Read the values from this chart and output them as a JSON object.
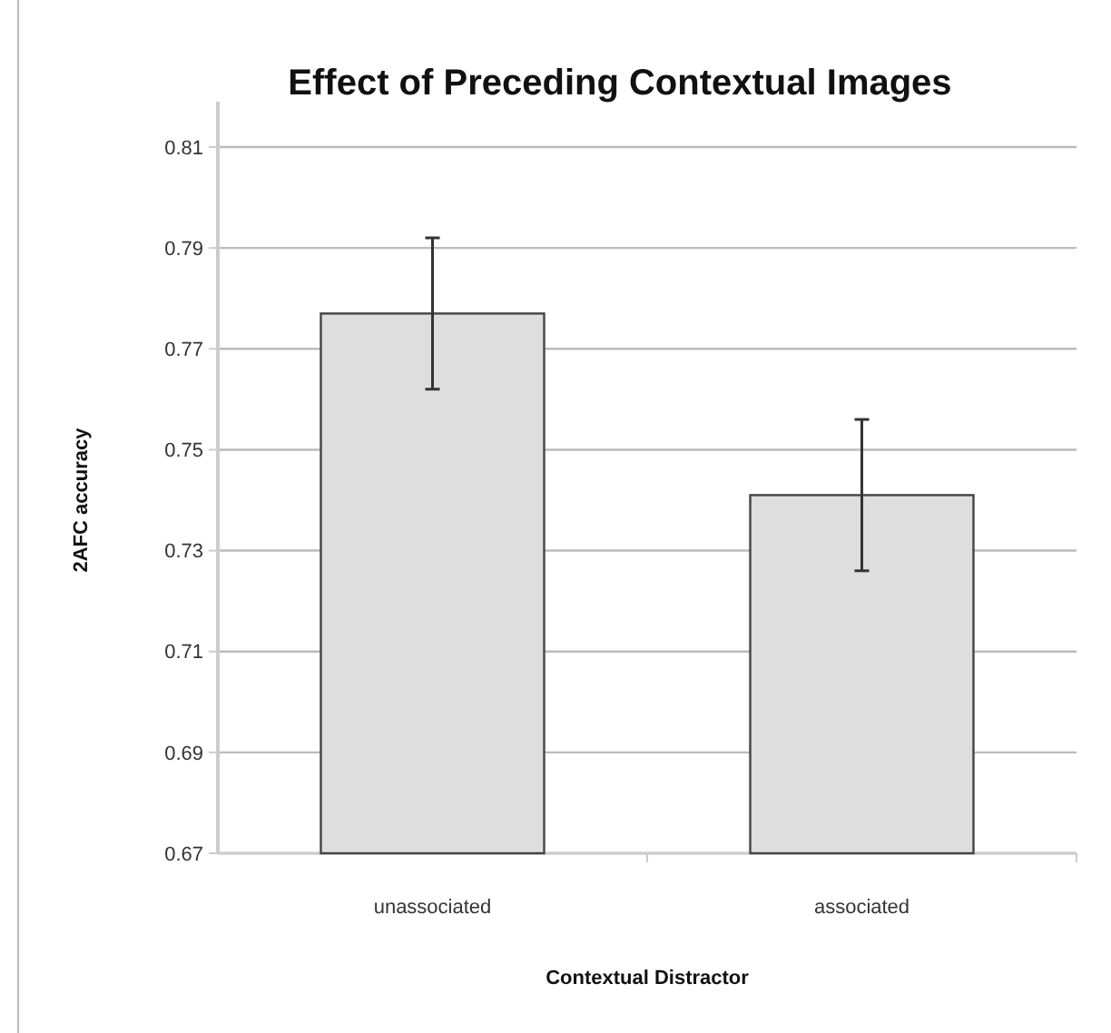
{
  "chart_data": {
    "type": "bar",
    "title": "Effect of Preceding Contextual Images",
    "xlabel": "Contextual Distractor",
    "ylabel": "2AFC accuracy",
    "categories": [
      "unassociated",
      "associated"
    ],
    "values": [
      0.777,
      0.741
    ],
    "errors": [
      0.015,
      0.015
    ],
    "color": "#dedede",
    "ylim": [
      0.67,
      0.81
    ],
    "yticks": [
      0.67,
      0.69,
      0.71,
      0.73,
      0.75,
      0.77,
      0.79,
      0.81
    ],
    "grid": "y"
  }
}
